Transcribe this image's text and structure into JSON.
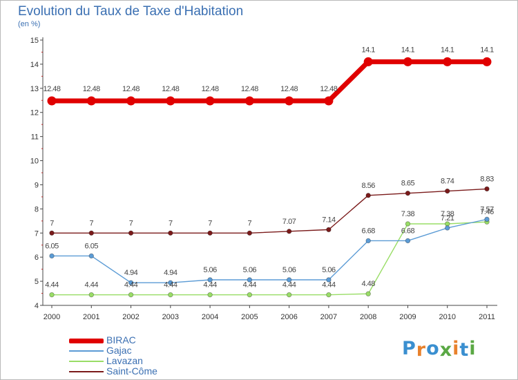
{
  "chart_data": {
    "type": "line",
    "title": "Evolution du Taux de Taxe d'Habitation",
    "subtitle": "(en %)",
    "xlabel": "",
    "ylabel": "(en %)",
    "ylim": [
      4,
      15
    ],
    "yticks": [
      4,
      5,
      6,
      7,
      8,
      9,
      10,
      11,
      12,
      13,
      14,
      15
    ],
    "x": [
      "2000",
      "2001",
      "2002",
      "2003",
      "2004",
      "2005",
      "2006",
      "2007",
      "2008",
      "2009",
      "2010",
      "2011"
    ],
    "series": [
      {
        "name": "BIRAC",
        "color": "#e00000",
        "values": [
          12.48,
          12.48,
          12.48,
          12.48,
          12.48,
          12.48,
          12.48,
          12.48,
          14.1,
          14.1,
          14.1,
          14.1
        ],
        "labels": [
          "12.48",
          "12.48",
          "12.48",
          "12.48",
          "12.48",
          "12.48",
          "12.48",
          "12.48",
          "14.1",
          "14.1",
          "14.1",
          "14.1"
        ]
      },
      {
        "name": "Gajac",
        "color": "#5b9bd5",
        "values": [
          6.05,
          6.05,
          4.94,
          4.94,
          5.06,
          5.06,
          5.06,
          5.06,
          6.68,
          6.68,
          7.21,
          7.57
        ],
        "labels": [
          "6.05",
          "6.05",
          "4.94",
          "4.94",
          "5.06",
          "5.06",
          "5.06",
          "5.06",
          "6.68",
          "6.68",
          "7.21",
          "7.57"
        ]
      },
      {
        "name": "Lavazan",
        "color": "#99dd66",
        "values": [
          4.44,
          4.44,
          4.44,
          4.44,
          4.44,
          4.44,
          4.44,
          4.44,
          4.48,
          7.38,
          7.38,
          7.46
        ],
        "labels": [
          "4.44",
          "4.44",
          "4.44",
          "4.44",
          "4.44",
          "4.44",
          "4.44",
          "4.44",
          "4.48",
          "7.38",
          "7.38",
          "7.46"
        ]
      },
      {
        "name": "Saint-Côme",
        "color": "#7a1a1a",
        "values": [
          7,
          7,
          7,
          7,
          7,
          7,
          7.07,
          7.14,
          8.56,
          8.65,
          8.74,
          8.83
        ],
        "labels": [
          "7",
          "7",
          "7",
          "7",
          "7",
          "7",
          "7.07",
          "7.14",
          "8.56",
          "8.65",
          "8.74",
          "8.83"
        ]
      }
    ],
    "grid": false,
    "legend": "bottom-left"
  },
  "logo": {
    "text": "Proxiti",
    "colors": [
      "#3a8fd0",
      "#e8812c",
      "#3a8fd0",
      "#5aa844",
      "#e8812c",
      "#3a8fd0",
      "#5aa844"
    ]
  }
}
